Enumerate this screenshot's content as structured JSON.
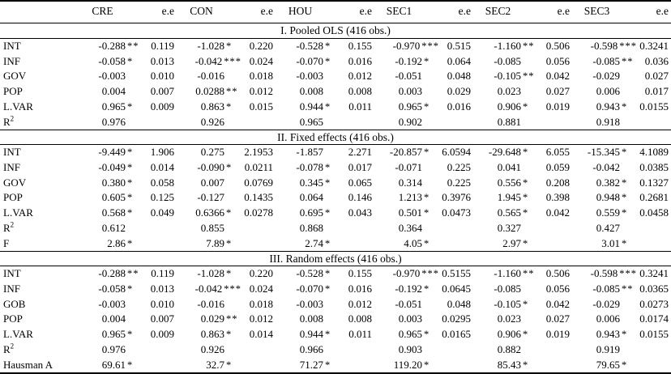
{
  "table": {
    "corner_label": "",
    "ee_header": "e.e",
    "column_groups": [
      "CRE",
      "CON",
      "HOU",
      "SEC1",
      "SEC2",
      "SEC3"
    ],
    "panels": [
      {
        "title": "I. Pooled OLS (416 obs.)",
        "rows": [
          {
            "label": "INT",
            "cells": [
              [
                "-0.288",
                "**",
                "0.119"
              ],
              [
                "-1.028",
                "*",
                "0.220"
              ],
              [
                "-0.528",
                "*",
                "0.155"
              ],
              [
                "-0.970",
                "***",
                "0.515"
              ],
              [
                "-1.160",
                "**",
                "0.506"
              ],
              [
                "-0.598",
                "***",
                "0.3241"
              ]
            ]
          },
          {
            "label": "INF",
            "cells": [
              [
                "-0.058",
                "*",
                "0.013"
              ],
              [
                "-0.042",
                "***",
                "0.024"
              ],
              [
                "-0.070",
                "*",
                "0.016"
              ],
              [
                "-0.192",
                "*",
                "0.064"
              ],
              [
                "-0.085",
                "",
                "0.056"
              ],
              [
                "-0.085",
                "**",
                "0.036"
              ]
            ]
          },
          {
            "label": "GOV",
            "cells": [
              [
                "-0.003",
                "",
                "0.010"
              ],
              [
                "-0.016",
                "",
                "0.018"
              ],
              [
                "-0.003",
                "",
                "0.012"
              ],
              [
                "-0.051",
                "",
                "0.048"
              ],
              [
                "-0.105",
                "**",
                "0.042"
              ],
              [
                "-0.029",
                "",
                "0.027"
              ]
            ]
          },
          {
            "label": "POP",
            "cells": [
              [
                "0.004",
                "",
                "0.007"
              ],
              [
                "0.0288",
                "**",
                "0.012"
              ],
              [
                "0.008",
                "",
                "0.008"
              ],
              [
                "0.003",
                "",
                "0.029"
              ],
              [
                "0.023",
                "",
                "0.027"
              ],
              [
                "0.006",
                "",
                "0.017"
              ]
            ]
          },
          {
            "label": "L.VAR",
            "cells": [
              [
                "0.965",
                "*",
                "0.009"
              ],
              [
                "0.863",
                "*",
                "0.015"
              ],
              [
                "0.944",
                "*",
                "0.011"
              ],
              [
                "0.965",
                "*",
                "0.016"
              ],
              [
                "0.906",
                "*",
                "0.019"
              ],
              [
                "0.943",
                "*",
                "0.0155"
              ]
            ]
          },
          {
            "label": "R²",
            "cells": [
              [
                "0.976",
                "",
                ""
              ],
              [
                "0.926",
                "",
                ""
              ],
              [
                "0.965",
                "",
                ""
              ],
              [
                "0.902",
                "",
                ""
              ],
              [
                "0.881",
                "",
                ""
              ],
              [
                "0.918",
                "",
                ""
              ]
            ]
          }
        ]
      },
      {
        "title": "II. Fixed effects (416 obs.)",
        "rows": [
          {
            "label": "INT",
            "cells": [
              [
                "-9.449",
                "*",
                "1.906"
              ],
              [
                "0.275",
                "",
                "2.1953"
              ],
              [
                "-1.857",
                "",
                "2.271"
              ],
              [
                "-20.857",
                "*",
                "6.0594"
              ],
              [
                "-29.648",
                "*",
                "6.055"
              ],
              [
                "-15.345",
                "*",
                "4.1089"
              ]
            ]
          },
          {
            "label": "INF",
            "cells": [
              [
                "-0.049",
                "*",
                "0.014"
              ],
              [
                "-0.090",
                "*",
                "0.0211"
              ],
              [
                "-0.078",
                "*",
                "0.017"
              ],
              [
                "-0.071",
                "",
                "0.225"
              ],
              [
                "0.041",
                "",
                "0.059"
              ],
              [
                "-0.042",
                "",
                "0.0385"
              ]
            ]
          },
          {
            "label": "GOV",
            "cells": [
              [
                "0.380",
                "*",
                "0.058"
              ],
              [
                "0.007",
                "",
                "0.0769"
              ],
              [
                "0.345",
                "*",
                "0.065"
              ],
              [
                "0.314",
                "",
                "0.225"
              ],
              [
                "0.556",
                "*",
                "0.208"
              ],
              [
                "0.382",
                "*",
                "0.1327"
              ]
            ]
          },
          {
            "label": "POP",
            "cells": [
              [
                "0.605",
                "*",
                "0.125"
              ],
              [
                "-0.127",
                "",
                "0.1435"
              ],
              [
                "0.064",
                "",
                "0.146"
              ],
              [
                "1.213",
                "*",
                "0.3976"
              ],
              [
                "1.945",
                "*",
                "0.398"
              ],
              [
                "0.948",
                "*",
                "0.2681"
              ]
            ]
          },
          {
            "label": "L.VAR",
            "cells": [
              [
                "0.568",
                "*",
                "0.049"
              ],
              [
                "0.6366",
                "*",
                "0.0278"
              ],
              [
                "0.695",
                "*",
                "0.043"
              ],
              [
                "0.501",
                "*",
                "0.0473"
              ],
              [
                "0.565",
                "*",
                "0.042"
              ],
              [
                "0.559",
                "*",
                "0.0458"
              ]
            ]
          },
          {
            "label": "R²",
            "cells": [
              [
                "0.612",
                "",
                ""
              ],
              [
                "0.855",
                "",
                ""
              ],
              [
                "0.868",
                "",
                ""
              ],
              [
                "0.364",
                "",
                ""
              ],
              [
                "0.327",
                "",
                ""
              ],
              [
                "0.427",
                "",
                ""
              ]
            ]
          },
          {
            "label": "F",
            "cells": [
              [
                "2.86",
                "*",
                ""
              ],
              [
                "7.89",
                "*",
                ""
              ],
              [
                "2.74",
                "*",
                ""
              ],
              [
                "4.05",
                "*",
                ""
              ],
              [
                "2.97",
                "*",
                ""
              ],
              [
                "3.01",
                "*",
                ""
              ]
            ]
          }
        ]
      },
      {
        "title": "III. Random effects (416 obs.)",
        "rows": [
          {
            "label": "INT",
            "cells": [
              [
                "-0.288",
                "**",
                "0.119"
              ],
              [
                "-1.028",
                "*",
                "0.220"
              ],
              [
                "-0.528",
                "*",
                "0.155"
              ],
              [
                "-0.970",
                "***",
                "0.5155"
              ],
              [
                "-1.160",
                "**",
                "0.506"
              ],
              [
                "-0.598",
                "***",
                "0.3241"
              ]
            ]
          },
          {
            "label": "INF",
            "cells": [
              [
                "-0.058",
                "*",
                "0.013"
              ],
              [
                "-0.042",
                "***",
                "0.024"
              ],
              [
                "-0.070",
                "*",
                "0.016"
              ],
              [
                "-0.192",
                "*",
                "0.0645"
              ],
              [
                "-0.085",
                "",
                "0.056"
              ],
              [
                "-0.085",
                "**",
                "0.0365"
              ]
            ]
          },
          {
            "label": "GOB",
            "cells": [
              [
                "-0.003",
                "",
                "0.010"
              ],
              [
                "-0.016",
                "",
                "0.018"
              ],
              [
                "-0.003",
                "",
                "0.012"
              ],
              [
                "-0.051",
                "",
                "0.048"
              ],
              [
                "-0.105",
                "*",
                "0.042"
              ],
              [
                "-0.029",
                "",
                "0.0273"
              ]
            ]
          },
          {
            "label": "POP",
            "cells": [
              [
                "0.004",
                "",
                "0.007"
              ],
              [
                "0.029",
                "**",
                "0.012"
              ],
              [
                "0.008",
                "",
                "0.008"
              ],
              [
                "0.003",
                "",
                "0.0295"
              ],
              [
                "0.023",
                "",
                "0.027"
              ],
              [
                "0.006",
                "",
                "0.0174"
              ]
            ]
          },
          {
            "label": "L.VAR",
            "cells": [
              [
                "0.965",
                "*",
                "0.009"
              ],
              [
                "0.863",
                "*",
                "0.014"
              ],
              [
                "0.944",
                "*",
                "0.011"
              ],
              [
                "0.965",
                "*",
                "0.0165"
              ],
              [
                "0.906",
                "*",
                "0.019"
              ],
              [
                "0.943",
                "*",
                "0.0155"
              ]
            ]
          },
          {
            "label": "R²",
            "cells": [
              [
                "0.976",
                "",
                ""
              ],
              [
                "0.926",
                "",
                ""
              ],
              [
                "0.966",
                "",
                ""
              ],
              [
                "0.903",
                "",
                ""
              ],
              [
                "0.882",
                "",
                ""
              ],
              [
                "0.919",
                "",
                ""
              ]
            ]
          },
          {
            "label": "Hausman A",
            "cells": [
              [
                "69.61",
                "*",
                ""
              ],
              [
                "32.7",
                "*",
                ""
              ],
              [
                "71.27",
                "*",
                ""
              ],
              [
                "119.20",
                "*",
                ""
              ],
              [
                "85.43",
                "*",
                ""
              ],
              [
                "79.65",
                "*",
                ""
              ]
            ]
          }
        ]
      }
    ]
  }
}
